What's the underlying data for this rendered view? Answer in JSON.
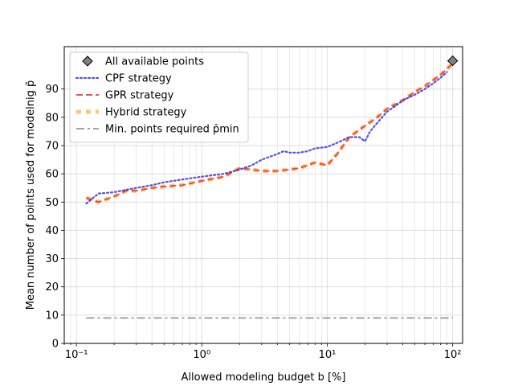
{
  "chart_data": {
    "type": "line",
    "title": "",
    "xlabel": "Allowed modeling budget b [%]",
    "ylabel": "Mean number of points used for modelnig p̄",
    "xscale": "log",
    "xlim": [
      0.08,
      120
    ],
    "ylim": [
      0,
      105
    ],
    "x_ticks": [
      {
        "value": 0.1,
        "label": "10⁻¹"
      },
      {
        "value": 1,
        "label": "10⁰"
      },
      {
        "value": 10,
        "label": "10¹"
      },
      {
        "value": 100,
        "label": "10²"
      }
    ],
    "y_ticks": [
      0,
      10,
      20,
      30,
      40,
      50,
      60,
      70,
      80,
      90
    ],
    "grid": true,
    "legend_position": "top-left",
    "series": [
      {
        "name": "All available points",
        "style": "marker",
        "color": "#808080",
        "points": [
          [
            100,
            100
          ]
        ]
      },
      {
        "name": "CPF strategy",
        "style": "dotted",
        "color": "#3333ee",
        "points": [
          [
            0.12,
            49.5
          ],
          [
            0.15,
            53
          ],
          [
            0.2,
            53.5
          ],
          [
            0.3,
            55
          ],
          [
            0.4,
            56
          ],
          [
            0.5,
            57
          ],
          [
            0.7,
            58
          ],
          [
            1,
            59
          ],
          [
            1.5,
            60
          ],
          [
            2,
            61.5
          ],
          [
            2.5,
            63
          ],
          [
            3,
            65
          ],
          [
            4,
            67
          ],
          [
            4.5,
            68
          ],
          [
            5,
            67.5
          ],
          [
            6,
            67.5
          ],
          [
            7,
            68
          ],
          [
            8,
            69
          ],
          [
            10,
            69.5
          ],
          [
            12,
            71
          ],
          [
            15,
            73
          ],
          [
            18,
            73
          ],
          [
            20,
            71.5
          ],
          [
            22,
            75
          ],
          [
            25,
            78
          ],
          [
            30,
            82
          ],
          [
            35,
            84
          ],
          [
            40,
            86
          ],
          [
            50,
            88
          ],
          [
            60,
            90
          ],
          [
            70,
            92
          ],
          [
            80,
            94
          ],
          [
            90,
            96
          ]
        ]
      },
      {
        "name": "GPR strategy",
        "style": "dashed",
        "color": "#ee3333",
        "points": [
          [
            0.12,
            51.5
          ],
          [
            0.15,
            50
          ],
          [
            0.2,
            52
          ],
          [
            0.25,
            54
          ],
          [
            0.3,
            54
          ],
          [
            0.4,
            55
          ],
          [
            0.5,
            55.5
          ],
          [
            0.7,
            56
          ],
          [
            1,
            57.5
          ],
          [
            1.5,
            59
          ],
          [
            2,
            62
          ],
          [
            2.5,
            61.5
          ],
          [
            3,
            61
          ],
          [
            4,
            61
          ],
          [
            5,
            61.5
          ],
          [
            6,
            62
          ],
          [
            8,
            64
          ],
          [
            10,
            63
          ],
          [
            12,
            67
          ],
          [
            15,
            73
          ],
          [
            20,
            77
          ],
          [
            25,
            80
          ],
          [
            30,
            83
          ],
          [
            40,
            86
          ],
          [
            50,
            89
          ],
          [
            60,
            91
          ],
          [
            80,
            95
          ],
          [
            100,
            99
          ]
        ]
      },
      {
        "name": "Hybrid strategy",
        "style": "thick-dashed",
        "color": "#ffb84d",
        "points": [
          [
            0.12,
            51.5
          ],
          [
            0.15,
            50
          ],
          [
            0.2,
            52
          ],
          [
            0.25,
            54
          ],
          [
            0.3,
            54
          ],
          [
            0.4,
            55
          ],
          [
            0.5,
            55.5
          ],
          [
            0.7,
            56
          ],
          [
            1,
            57.5
          ],
          [
            1.5,
            59
          ],
          [
            2,
            62
          ],
          [
            2.5,
            61.5
          ],
          [
            3,
            61
          ],
          [
            4,
            61
          ],
          [
            5,
            61.5
          ],
          [
            6,
            62
          ],
          [
            8,
            64
          ],
          [
            10,
            63
          ],
          [
            12,
            67
          ],
          [
            15,
            73
          ],
          [
            20,
            77
          ],
          [
            25,
            80
          ],
          [
            30,
            83
          ],
          [
            40,
            86
          ],
          [
            50,
            89
          ],
          [
            60,
            91
          ],
          [
            80,
            95
          ],
          [
            100,
            99
          ]
        ]
      },
      {
        "name": "Min. points required p̄min",
        "style": "dashdot",
        "color": "#999999",
        "points": [
          [
            0.12,
            9
          ],
          [
            100,
            9
          ]
        ]
      }
    ]
  }
}
